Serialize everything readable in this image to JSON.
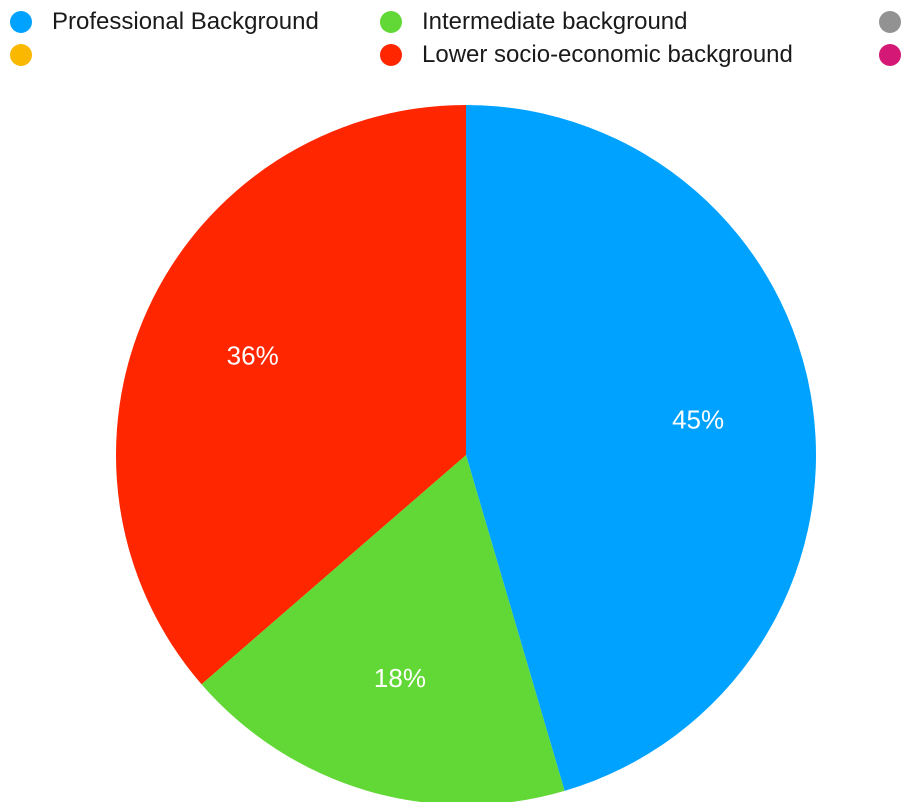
{
  "legend": {
    "items": [
      {
        "label": "Professional Background",
        "color": "#00a2ff"
      },
      {
        "label": "Intermediate background",
        "color": "#61d836"
      },
      {
        "label": "",
        "color": "#929292"
      },
      {
        "label": "",
        "color": "#fbb800"
      },
      {
        "label": "Lower socio-economic  background",
        "color": "#ff2600"
      },
      {
        "label": "",
        "color": "#d41876"
      }
    ]
  },
  "chart_data": {
    "type": "pie",
    "title": "",
    "start_angle_deg": 0,
    "direction": "clockwise",
    "slices": [
      {
        "label": "Professional Background",
        "value": 45,
        "display": "45%",
        "color": "#00a2ff"
      },
      {
        "label": "Intermediate background",
        "value": 18,
        "display": "18%",
        "color": "#61d836"
      },
      {
        "label": "Lower socio-economic  background",
        "value": 36,
        "display": "36%",
        "color": "#ff2600"
      }
    ],
    "legend_position": "top"
  }
}
